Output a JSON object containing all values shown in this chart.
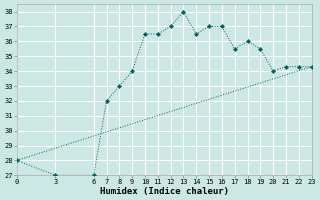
{
  "xlabel": "Humidex (Indice chaleur)",
  "ylabel": "",
  "bg_color": "#cce8e4",
  "grid_color": "#ffffff",
  "line_color": "#006060",
  "xlim": [
    0,
    23
  ],
  "ylim": [
    27,
    38.5
  ],
  "yticks": [
    27,
    28,
    29,
    30,
    31,
    32,
    33,
    34,
    35,
    36,
    37,
    38
  ],
  "xticks": [
    0,
    3,
    6,
    7,
    8,
    9,
    10,
    11,
    12,
    13,
    14,
    15,
    16,
    17,
    18,
    19,
    20,
    21,
    22,
    23
  ],
  "curve1_x": [
    0,
    3,
    6,
    7,
    8,
    9,
    10,
    11,
    12,
    13,
    14,
    15,
    16,
    17,
    18,
    19,
    20,
    21,
    22,
    23
  ],
  "curve1_y": [
    28,
    27,
    27,
    32,
    33,
    34,
    36.5,
    36.5,
    37,
    38,
    36.5,
    37,
    37,
    35.5,
    36,
    35.5,
    34,
    34.3,
    34.3,
    34.3
  ],
  "curve2_x": [
    0,
    23
  ],
  "curve2_y": [
    28,
    34.3
  ],
  "tick_fontsize": 5,
  "xlabel_fontsize": 6.5
}
